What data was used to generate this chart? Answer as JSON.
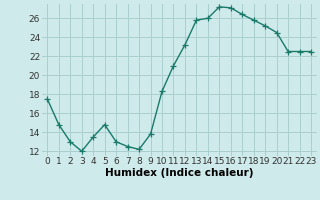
{
  "x": [
    0,
    1,
    2,
    3,
    4,
    5,
    6,
    7,
    8,
    9,
    10,
    11,
    12,
    13,
    14,
    15,
    16,
    17,
    18,
    19,
    20,
    21,
    22,
    23
  ],
  "y": [
    17.5,
    14.8,
    13.0,
    12.0,
    13.5,
    14.8,
    13.0,
    12.5,
    12.2,
    13.8,
    18.3,
    21.0,
    23.2,
    25.8,
    26.0,
    27.2,
    27.1,
    26.4,
    25.8,
    25.2,
    24.5,
    22.5,
    22.5,
    22.5
  ],
  "line_color": "#1a7a6a",
  "marker": "+",
  "marker_size": 4,
  "bg_color": "#ceeaea",
  "grid_color": "#aacece",
  "xlabel": "Humidex (Indice chaleur)",
  "xlim": [
    -0.5,
    23.5
  ],
  "ylim": [
    11.5,
    27.5
  ],
  "yticks": [
    12,
    14,
    16,
    18,
    20,
    22,
    24,
    26
  ],
  "xticks": [
    0,
    1,
    2,
    3,
    4,
    5,
    6,
    7,
    8,
    9,
    10,
    11,
    12,
    13,
    14,
    15,
    16,
    17,
    18,
    19,
    20,
    21,
    22,
    23
  ],
  "tick_fontsize": 6.5,
  "label_fontsize": 7.5
}
